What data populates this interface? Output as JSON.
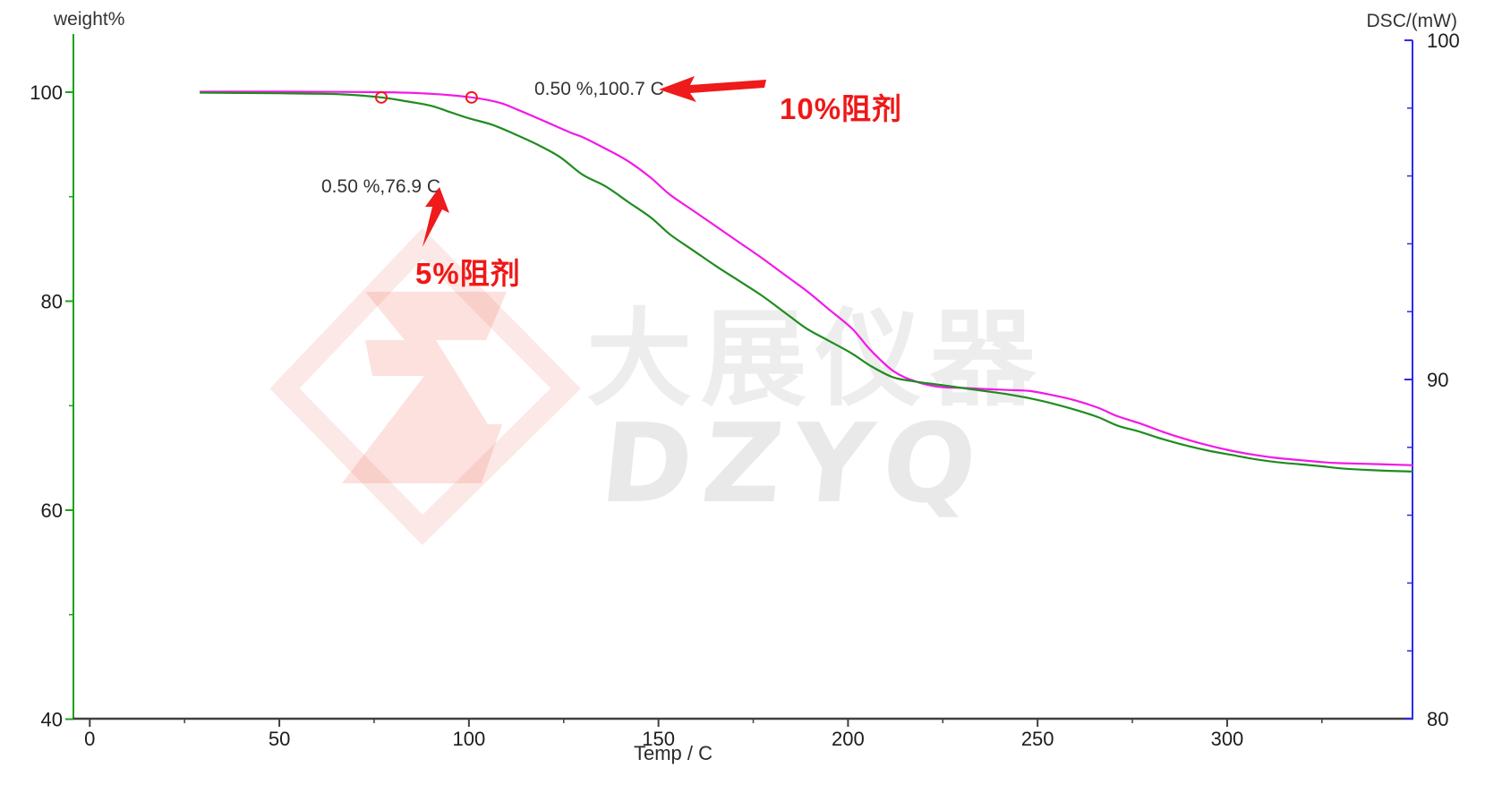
{
  "watermark": {
    "cjk_text": "大展仪器",
    "latin_text": "DZYQ",
    "logo_pink": "#f5837a",
    "text_gray": "#ebebeb"
  },
  "annotations": {
    "onset_10pct": {
      "text": "0.50 %,100.7 C"
    },
    "onset_5pct": {
      "text": "0.50 %,76.9 C"
    },
    "series_label_10pct": {
      "text": "10%阻剂",
      "color": "#f01717"
    },
    "series_label_5pct": {
      "text": "5%阻剂",
      "color": "#f01717"
    }
  },
  "axes": {
    "left": {
      "label": "weight%",
      "color": "#1aa31a",
      "major_ticks": [
        {
          "value": 100,
          "label": "100"
        },
        {
          "value": 80,
          "label": "80"
        },
        {
          "value": 60,
          "label": "60"
        },
        {
          "value": 40,
          "label": "40"
        }
      ],
      "minor_ticks": [
        90,
        70,
        50
      ]
    },
    "right": {
      "label": "DSC/(mW)",
      "color": "#2b2bea",
      "major_ticks": [
        {
          "value": 100,
          "label": "100"
        },
        {
          "value": 90,
          "label": "90"
        },
        {
          "value": 80,
          "label": "80"
        }
      ],
      "minor_ticks": [
        98,
        96,
        94,
        92,
        88,
        86,
        84,
        82
      ]
    },
    "x": {
      "label": "Temp / C",
      "color": "#404040",
      "major_ticks": [
        {
          "value": 0,
          "label": "0"
        },
        {
          "value": 50,
          "label": "50"
        },
        {
          "value": 100,
          "label": "100"
        },
        {
          "value": 150,
          "label": "150"
        },
        {
          "value": 200,
          "label": "200"
        },
        {
          "value": 250,
          "label": "250"
        },
        {
          "value": 300,
          "label": "300"
        }
      ],
      "minor_ticks": [
        25,
        75,
        125,
        175,
        225,
        275,
        325
      ]
    }
  },
  "chart_data": {
    "type": "line",
    "title": "",
    "xlabel": "Temp / C",
    "ylabel_left": "weight%",
    "ylabel_right": "DSC/(mW)",
    "xlim": [
      0,
      349
    ],
    "ylim_left": [
      40,
      105.5
    ],
    "ylim_right": [
      80,
      100
    ],
    "grid": false,
    "legend_position": "inline-red-labels",
    "series": [
      {
        "name": "10%阻剂",
        "color": "#f318e8",
        "axis": "left",
        "points": [
          [
            29,
            100.05
          ],
          [
            50,
            100.05
          ],
          [
            77,
            100.0
          ],
          [
            90,
            99.85
          ],
          [
            100.7,
            99.5
          ],
          [
            108,
            99.0
          ],
          [
            113,
            98.3
          ],
          [
            122,
            96.9
          ],
          [
            127,
            96.1
          ],
          [
            130,
            95.7
          ],
          [
            136,
            94.6
          ],
          [
            142,
            93.4
          ],
          [
            148,
            91.8
          ],
          [
            153,
            90.2
          ],
          [
            159,
            88.7
          ],
          [
            165,
            87.2
          ],
          [
            171,
            85.7
          ],
          [
            177,
            84.2
          ],
          [
            183,
            82.6
          ],
          [
            189,
            81.0
          ],
          [
            195,
            79.2
          ],
          [
            201,
            77.4
          ],
          [
            206,
            75.3
          ],
          [
            212,
            73.3
          ],
          [
            218,
            72.3
          ],
          [
            224,
            71.8
          ],
          [
            230,
            71.7
          ],
          [
            236,
            71.6
          ],
          [
            242,
            71.5
          ],
          [
            248,
            71.4
          ],
          [
            254,
            71.0
          ],
          [
            260,
            70.5
          ],
          [
            266,
            69.8
          ],
          [
            271,
            69.0
          ],
          [
            277,
            68.3
          ],
          [
            283,
            67.5
          ],
          [
            289,
            66.8
          ],
          [
            295,
            66.2
          ],
          [
            301,
            65.7
          ],
          [
            307,
            65.3
          ],
          [
            313,
            65.0
          ],
          [
            319,
            64.8
          ],
          [
            325,
            64.6
          ],
          [
            330,
            64.5
          ],
          [
            340,
            64.4
          ],
          [
            349,
            64.3
          ]
        ]
      },
      {
        "name": "5%阻剂",
        "color": "#1f8c1f",
        "axis": "left",
        "points": [
          [
            29,
            99.95
          ],
          [
            50,
            99.9
          ],
          [
            66,
            99.8
          ],
          [
            76.9,
            99.5
          ],
          [
            84,
            99.1
          ],
          [
            90,
            98.7
          ],
          [
            95,
            98.1
          ],
          [
            100,
            97.5
          ],
          [
            106,
            96.9
          ],
          [
            112,
            96.0
          ],
          [
            118,
            95.0
          ],
          [
            124,
            93.8
          ],
          [
            130,
            92.1
          ],
          [
            136,
            91.0
          ],
          [
            142,
            89.5
          ],
          [
            148,
            88.0
          ],
          [
            153,
            86.4
          ],
          [
            159,
            84.9
          ],
          [
            165,
            83.4
          ],
          [
            171,
            82.0
          ],
          [
            177,
            80.6
          ],
          [
            183,
            79.0
          ],
          [
            189,
            77.4
          ],
          [
            195,
            76.2
          ],
          [
            201,
            75.0
          ],
          [
            206,
            73.8
          ],
          [
            212,
            72.7
          ],
          [
            218,
            72.3
          ],
          [
            224,
            72.0
          ],
          [
            230,
            71.7
          ],
          [
            236,
            71.4
          ],
          [
            242,
            71.1
          ],
          [
            248,
            70.7
          ],
          [
            254,
            70.2
          ],
          [
            260,
            69.6
          ],
          [
            266,
            68.9
          ],
          [
            271,
            68.1
          ],
          [
            277,
            67.5
          ],
          [
            283,
            66.8
          ],
          [
            289,
            66.2
          ],
          [
            295,
            65.7
          ],
          [
            301,
            65.3
          ],
          [
            307,
            64.9
          ],
          [
            313,
            64.6
          ],
          [
            319,
            64.4
          ],
          [
            325,
            64.2
          ],
          [
            330,
            64.0
          ],
          [
            340,
            63.8
          ],
          [
            349,
            63.7
          ]
        ]
      }
    ],
    "markers": [
      {
        "series": "5%阻剂",
        "t": 76.9,
        "weight": 99.5,
        "color": "#ef1a1a"
      },
      {
        "series": "10%阻剂",
        "t": 100.7,
        "weight": 99.5,
        "color": "#ef1a1a"
      }
    ]
  }
}
